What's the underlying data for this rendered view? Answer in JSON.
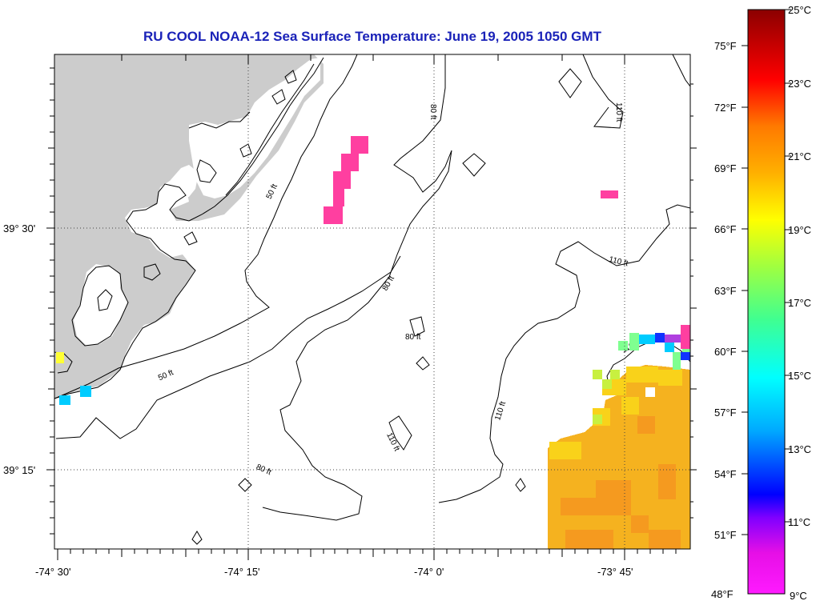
{
  "title": "RU COOL  NOAA-12  Sea Surface Temperature:  June 19, 2005 1050 GMT",
  "axes": {
    "x_ticks": [
      "-74° 30'",
      "-74° 15'",
      "-74° 0'",
      "-73° 45'"
    ],
    "y_ticks": [
      "39° 30'",
      "39° 15'"
    ]
  },
  "contours": [
    "50 ft",
    "50 ft",
    "80 ft",
    "80 ft",
    "80 ft",
    "80 ft",
    "110 ft",
    "110 ft",
    "110 ft",
    "110 ft",
    "110 ft"
  ],
  "colorbar": {
    "fahrenheit": [
      "75°F",
      "72°F",
      "69°F",
      "66°F",
      "63°F",
      "60°F",
      "57°F",
      "54°F",
      "51°F",
      "48°F"
    ],
    "celsius": [
      "25°C",
      "23°C",
      "21°C",
      "19°C",
      "17°C",
      "15°C",
      "13°C",
      "11°C",
      "9°C"
    ],
    "colors": [
      "#8b0000",
      "#ff0000",
      "#ff8c00",
      "#ffff00",
      "#7fff00",
      "#00ff7f",
      "#00ffff",
      "#0000ff",
      "#800080",
      "#ff00ff"
    ]
  },
  "colors": {
    "land": "#cccccc",
    "title": "#1a22b8",
    "warm_sst": "#f5b21f",
    "cold_patch": "#ff3fa0"
  }
}
